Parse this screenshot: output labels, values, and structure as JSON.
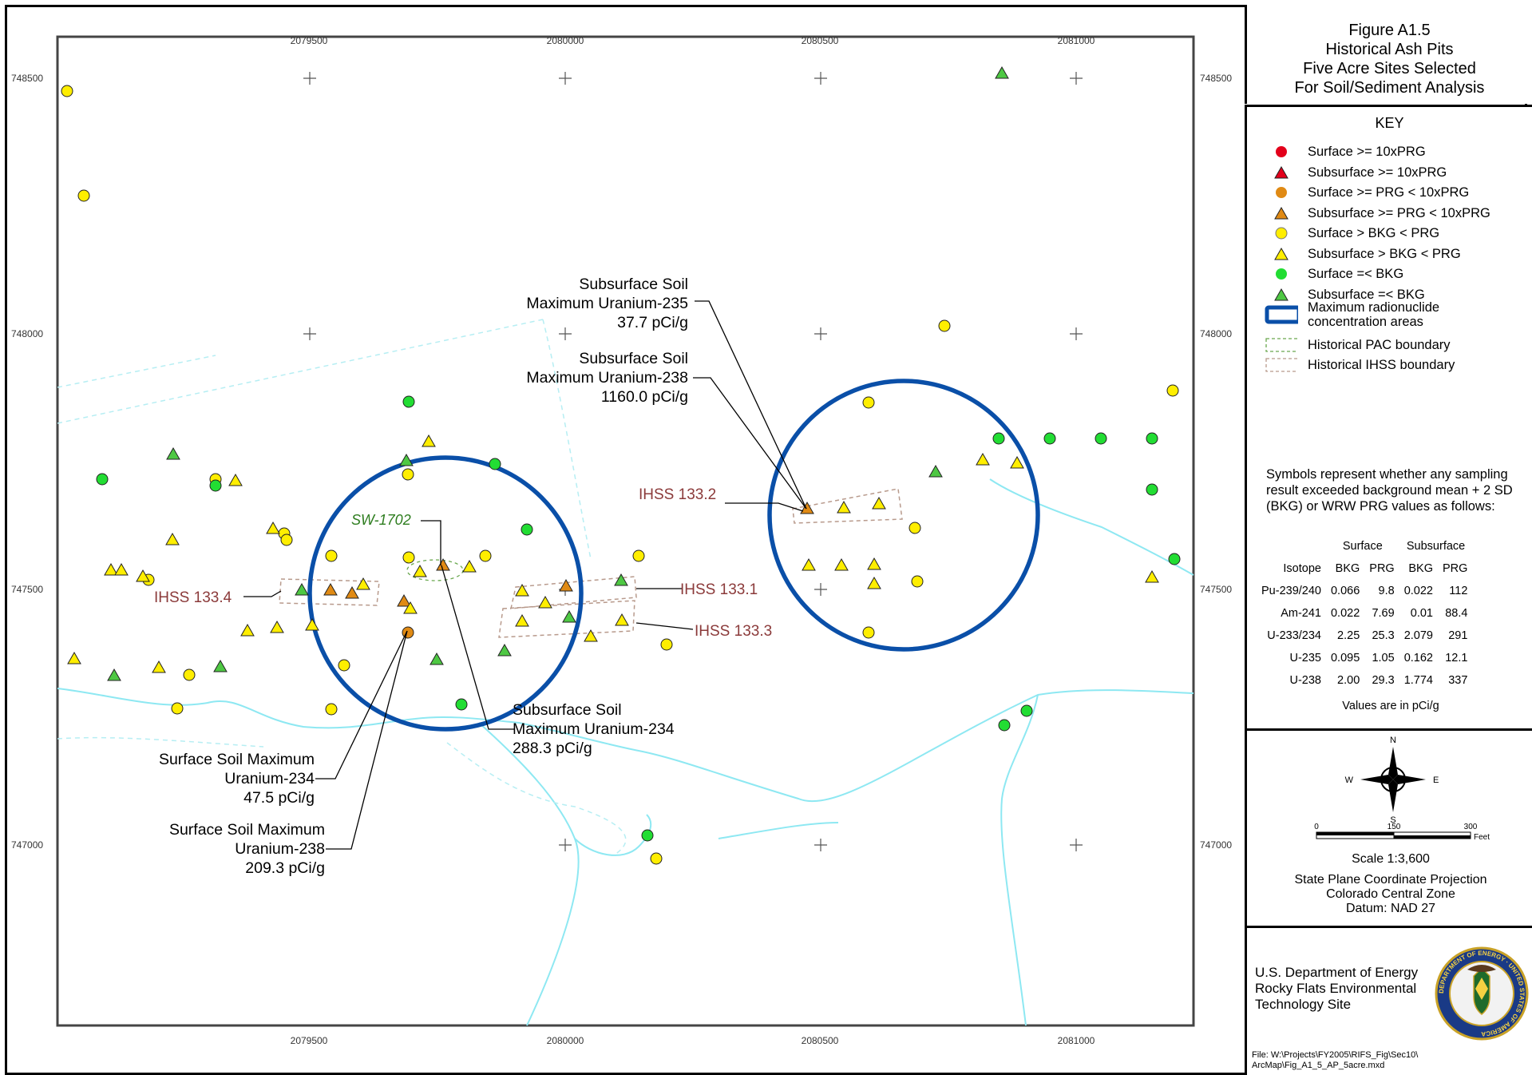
{
  "figure": {
    "title_lines": [
      "Figure A1.5",
      "Historical Ash Pits",
      "Five Acre Sites Selected",
      "For Soil/Sediment Analysis"
    ]
  },
  "map": {
    "top_axis_labels": [
      "2079500",
      "2080000",
      "2080500",
      "2081000"
    ],
    "bottom_axis_labels": [
      "2079500",
      "2080000",
      "2080500",
      "2081000"
    ],
    "left_axis_labels": [
      "748500",
      "748000",
      "747500",
      "747000"
    ],
    "right_axis_labels": [
      "748500",
      "748000",
      "747500",
      "747000"
    ],
    "ihss_labels": {
      "ihss_133_4": "IHSS 133.4",
      "ihss_133_1": "IHSS 133.1",
      "ihss_133_3": "IHSS 133.3",
      "ihss_133_2": "IHSS 133.2"
    },
    "pac_label": "SW-1702",
    "callouts": {
      "u235_sub": [
        "Subsurface Soil",
        "Maximum Uranium-235",
        "37.7 pCi/g"
      ],
      "u238_sub": [
        "Subsurface Soil",
        "Maximum Uranium-238",
        "1160.0 pCi/g"
      ],
      "u234_sub": [
        "Subsurface Soil",
        "Maximum Uranium-234",
        "288.3 pCi/g"
      ],
      "u234_surf": [
        "Surface Soil Maximum",
        "Uranium-234",
        "47.5 pCi/g"
      ],
      "u238_surf": [
        "Surface Soil Maximum",
        "Uranium-238",
        "209.3 pCi/g"
      ]
    },
    "colors": {
      "red": "#e3001b",
      "orange": "#e08a14",
      "yellow": "#ffee00",
      "green": "#22dd33",
      "green_triangle": "#4ec843",
      "circle_blue": "#0a4fa8",
      "creek": "#8ee8f2",
      "boundary": "#b89a8c",
      "ihss_label": "#8b3a3a",
      "pac_label": "#2e7d1f"
    }
  },
  "key": {
    "title": "KEY",
    "items": [
      {
        "symbol": "circle",
        "color": "#e3001b",
        "label": "Surface >= 10xPRG"
      },
      {
        "symbol": "triangle",
        "color": "#e3001b",
        "label": "Subsurface >= 10xPRG"
      },
      {
        "symbol": "circle",
        "color": "#e08a14",
        "label": "Surface >= PRG < 10xPRG"
      },
      {
        "symbol": "triangle",
        "color": "#e08a14",
        "label": "Subsurface >= PRG < 10xPRG"
      },
      {
        "symbol": "circle",
        "color": "#ffee00",
        "label": "Surface > BKG < PRG"
      },
      {
        "symbol": "triangle",
        "color": "#ffee00",
        "label": "Subsurface > BKG < PRG"
      },
      {
        "symbol": "circle",
        "color": "#22dd33",
        "label": "Surface =< BKG"
      },
      {
        "symbol": "triangle",
        "color": "#4ec843",
        "label": "Subsurface =< BKG"
      },
      {
        "symbol": "blue-box",
        "color": "#0a4fa8",
        "label": "Maximum radionuclide",
        "label2": "concentration areas"
      },
      {
        "symbol": "green-dash",
        "color": "#6aa84f",
        "label": "Historical PAC boundary"
      },
      {
        "symbol": "brown-dash",
        "color": "#b89a8c",
        "label": "Historical IHSS boundary"
      }
    ],
    "note": "Symbols represent whether any sampling result exceeded background mean + 2 SD (BKG) or WRW PRG values as follows:",
    "table": {
      "group_headers": [
        "Surface",
        "Subsurface"
      ],
      "headers": [
        "Isotope",
        "BKG",
        "PRG",
        "BKG",
        "PRG"
      ],
      "rows": [
        [
          "Pu-239/240",
          "0.066",
          "9.8",
          "0.022",
          "112"
        ],
        [
          "Am-241",
          "0.022",
          "7.69",
          "0.01",
          "88.4"
        ],
        [
          "U-233/234",
          "2.25",
          "25.3",
          "2.079",
          "291"
        ],
        [
          "U-235",
          "0.095",
          "1.05",
          "0.162",
          "12.1"
        ],
        [
          "U-238",
          "2.00",
          "29.3",
          "1.774",
          "337"
        ]
      ]
    },
    "units_note": "Values are in pCi/g"
  },
  "compass": {
    "n": "N",
    "s": "S",
    "e": "E",
    "w": "W"
  },
  "scale_bar": {
    "ticks": [
      "0",
      "150",
      "300"
    ],
    "unit": "Feet"
  },
  "scale_text": "Scale  1:3,600",
  "projection": [
    "State Plane Coordinate Projection",
    "Colorado Central Zone",
    "Datum: NAD 27"
  ],
  "agency": [
    "U.S. Department of Energy",
    "Rocky Flats Environmental",
    "Technology Site"
  ],
  "seal_text": "DEPARTMENT OF ENERGY · UNITED STATES OF AMERICA",
  "file_path": [
    "File: W:\\Projects\\FY2005\\RIFS_Fig\\Sec10\\",
    "ArcMap\\Fig_A1_5_AP_5acre.mxd"
  ]
}
